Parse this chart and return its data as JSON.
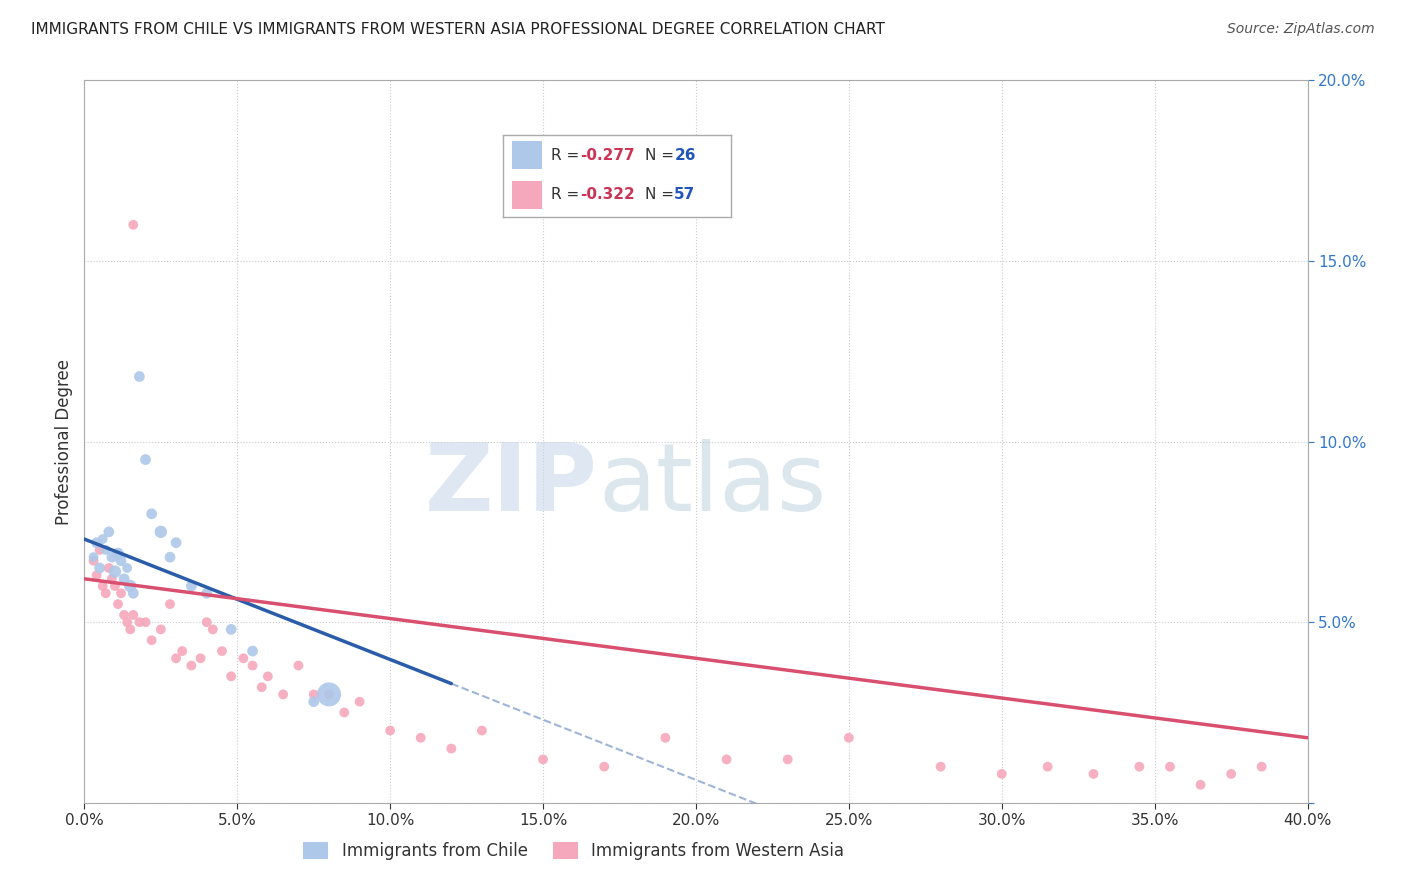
{
  "title": "IMMIGRANTS FROM CHILE VS IMMIGRANTS FROM WESTERN ASIA PROFESSIONAL DEGREE CORRELATION CHART",
  "source": "Source: ZipAtlas.com",
  "ylabel": "Professional Degree",
  "xlim": [
    0.0,
    0.4
  ],
  "ylim": [
    0.0,
    0.2
  ],
  "legend_chile_R": "-0.277",
  "legend_chile_N": "26",
  "legend_wa_R": "-0.322",
  "legend_wa_N": "57",
  "chile_color": "#adc8e8",
  "wa_color": "#f5a8bc",
  "chile_line_color": "#2a5caa",
  "wa_line_color": "#d94f70",
  "background_color": "#ffffff",
  "grid_color": "#cccccc",
  "title_color": "#222222",
  "source_color": "#555555",
  "axis_label_color": "#333333",
  "legend_R_color": "#cc3355",
  "legend_N_color": "#2255bb",
  "tick_color_x": "#333333",
  "tick_color_y": "#3377cc",
  "watermark_zip_color": "#c8d4e8",
  "watermark_atlas_color": "#b8c8d8",
  "chile_scatter_x": [
    0.003,
    0.004,
    0.005,
    0.006,
    0.007,
    0.008,
    0.009,
    0.01,
    0.011,
    0.012,
    0.013,
    0.014,
    0.015,
    0.016,
    0.018,
    0.02,
    0.022,
    0.025,
    0.028,
    0.03,
    0.035,
    0.04,
    0.048,
    0.055,
    0.075,
    0.08
  ],
  "chile_scatter_y": [
    0.068,
    0.072,
    0.065,
    0.073,
    0.07,
    0.075,
    0.068,
    0.064,
    0.069,
    0.067,
    0.062,
    0.065,
    0.06,
    0.058,
    0.118,
    0.095,
    0.08,
    0.075,
    0.068,
    0.072,
    0.06,
    0.058,
    0.048,
    0.042,
    0.028,
    0.03
  ],
  "chile_scatter_size": [
    50,
    60,
    60,
    50,
    50,
    60,
    60,
    80,
    70,
    60,
    60,
    50,
    80,
    60,
    60,
    60,
    60,
    80,
    60,
    60,
    60,
    60,
    60,
    60,
    60,
    300
  ],
  "wa_scatter_x": [
    0.003,
    0.004,
    0.005,
    0.006,
    0.007,
    0.008,
    0.009,
    0.01,
    0.011,
    0.012,
    0.013,
    0.014,
    0.015,
    0.016,
    0.018,
    0.02,
    0.022,
    0.025,
    0.028,
    0.03,
    0.032,
    0.035,
    0.038,
    0.04,
    0.042,
    0.045,
    0.048,
    0.052,
    0.055,
    0.058,
    0.06,
    0.065,
    0.07,
    0.075,
    0.08,
    0.085,
    0.09,
    0.1,
    0.11,
    0.12,
    0.13,
    0.15,
    0.17,
    0.19,
    0.21,
    0.23,
    0.25,
    0.28,
    0.3,
    0.315,
    0.33,
    0.345,
    0.355,
    0.365,
    0.375,
    0.385,
    0.016
  ],
  "wa_scatter_y": [
    0.067,
    0.063,
    0.07,
    0.06,
    0.058,
    0.065,
    0.062,
    0.06,
    0.055,
    0.058,
    0.052,
    0.05,
    0.048,
    0.052,
    0.05,
    0.05,
    0.045,
    0.048,
    0.055,
    0.04,
    0.042,
    0.038,
    0.04,
    0.05,
    0.048,
    0.042,
    0.035,
    0.04,
    0.038,
    0.032,
    0.035,
    0.03,
    0.038,
    0.03,
    0.03,
    0.025,
    0.028,
    0.02,
    0.018,
    0.015,
    0.02,
    0.012,
    0.01,
    0.018,
    0.012,
    0.012,
    0.018,
    0.01,
    0.008,
    0.01,
    0.008,
    0.01,
    0.01,
    0.005,
    0.008,
    0.01,
    0.16
  ],
  "wa_scatter_size": [
    50,
    50,
    50,
    50,
    50,
    50,
    50,
    50,
    50,
    50,
    50,
    50,
    50,
    50,
    50,
    50,
    50,
    50,
    50,
    50,
    50,
    50,
    50,
    50,
    50,
    50,
    50,
    50,
    50,
    50,
    50,
    50,
    50,
    50,
    50,
    50,
    50,
    50,
    50,
    50,
    50,
    50,
    50,
    50,
    50,
    50,
    50,
    50,
    50,
    50,
    50,
    50,
    50,
    50,
    50,
    50,
    50
  ],
  "chile_line_x0": 0.0,
  "chile_line_y0": 0.073,
  "chile_line_x1": 0.12,
  "chile_line_y1": 0.033,
  "chile_line_xend": 0.4,
  "chile_line_yend": -0.027,
  "wa_line_x0": 0.0,
  "wa_line_y0": 0.062,
  "wa_line_x1": 0.4,
  "wa_line_y1": 0.018
}
